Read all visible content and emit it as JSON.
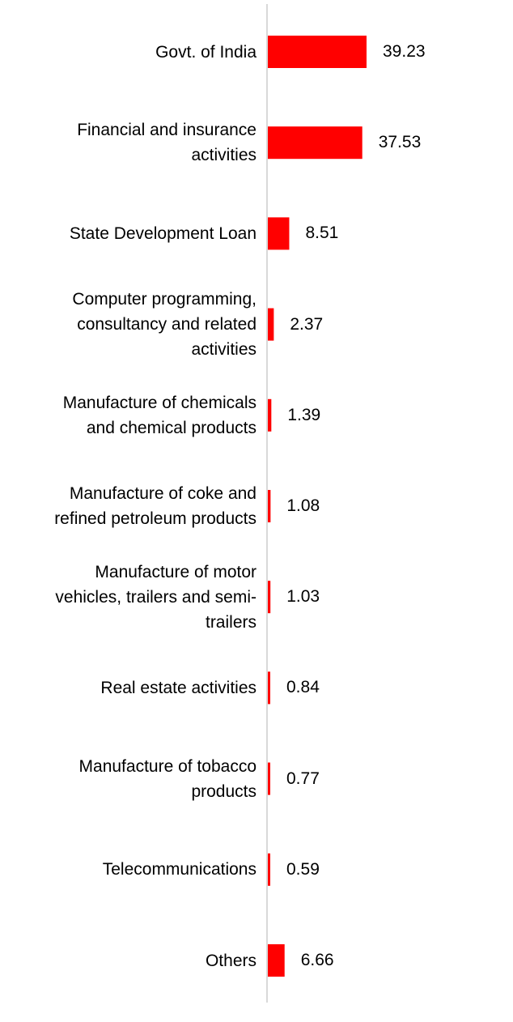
{
  "chart_data": {
    "type": "bar",
    "orientation": "horizontal",
    "categories": [
      "Govt. of India",
      "Financial and insurance\nactivities",
      "State Development Loan",
      "Computer programming,\nconsultancy and related\nactivities",
      "Manufacture of chemicals\nand chemical products",
      "Manufacture of coke and\nrefined petroleum products",
      "Manufacture of motor\nvehicles, trailers and semi-\ntrailers",
      "Real estate activities",
      "Manufacture of tobacco\nproducts",
      "Telecommunications",
      "Others"
    ],
    "values": [
      39.23,
      37.53,
      8.51,
      2.37,
      1.39,
      1.08,
      1.03,
      0.84,
      0.77,
      0.59,
      6.66
    ],
    "value_labels": [
      "39.23",
      "37.53",
      "8.51",
      "2.37",
      "1.39",
      "1.08",
      "1.03",
      "0.84",
      "0.77",
      "0.59",
      "6.66"
    ],
    "title": "",
    "xlabel": "",
    "ylabel": "",
    "xlim": [
      0,
      40
    ],
    "grid": false,
    "legend": "none",
    "bar_color": "#ff0000",
    "axis_color": "#d9d9d9"
  }
}
